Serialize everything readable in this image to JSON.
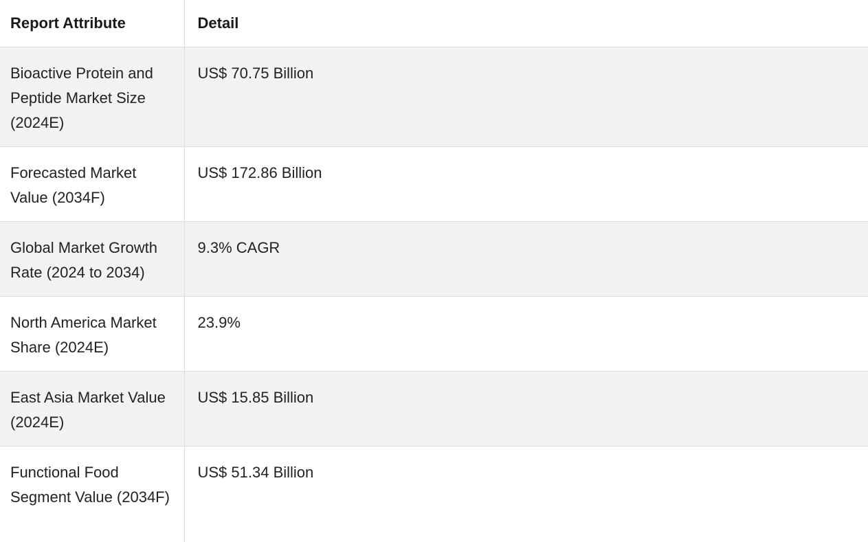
{
  "table": {
    "headers": [
      "Report Attribute",
      "Detail"
    ],
    "rows": [
      {
        "attribute": "Bioactive Protein and Peptide Market Size (2024E)",
        "detail": "US$ 70.75 Billion"
      },
      {
        "attribute": "Forecasted Market Value (2034F)",
        "detail": "US$ 172.86 Billion"
      },
      {
        "attribute": "Global Market Growth Rate (2024 to 2034)",
        "detail": "9.3% CAGR"
      },
      {
        "attribute": "North America Market Share (2024E)",
        "detail": "23.9%"
      },
      {
        "attribute": "East Asia Market Value (2024E)",
        "detail": "US$ 15.85 Billion"
      },
      {
        "attribute": "Functional Food Segment Value (2034F)",
        "detail": "US$ 51.34 Billion"
      }
    ]
  },
  "colors": {
    "shaded_row": "#f2f2f2",
    "border": "#dcdcdc",
    "text": "#222222"
  }
}
